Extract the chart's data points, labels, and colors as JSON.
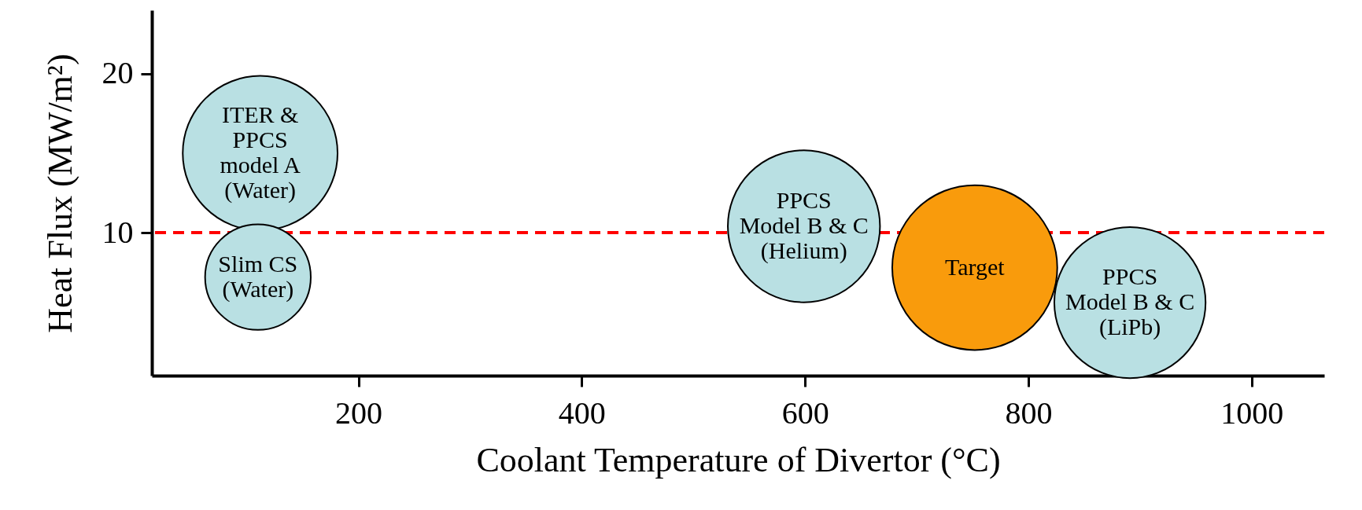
{
  "chart_data": {
    "type": "bubble",
    "xlabel": "Coolant Temperature of Divertor (°C)",
    "ylabel": "Heat Flux (MW/m²)",
    "x": [
      112,
      110,
      599,
      891,
      752
    ],
    "values": [
      15.0,
      7.2,
      10.4,
      5.6,
      7.8
    ],
    "sizes": [
      0.88,
      0.41,
      0.85,
      0.84,
      1
    ],
    "colors": [
      "#b9e0e3",
      "#b9e0e3",
      "#b9e0e3",
      "#b9e0e3",
      "#f99b0c"
    ],
    "xlim": [
      15,
      1065
    ],
    "ylim": [
      1,
      24
    ],
    "xticks": [
      200,
      400,
      600,
      800,
      {
        "value": 1000,
        "label": "1000"
      }
    ],
    "yticks": [
      10,
      20
    ],
    "annotations": [
      {
        "text": "ITER &\nPPCS\nmodel A\n(Water)",
        "x": 112,
        "y": 15.0
      },
      {
        "text": "Slim CS\n(Water)",
        "x": 110,
        "y": 7.2
      },
      "PPCS\nModel B & C\n(Helium)",
      "PPCS\nModel B & C\n(LiPb)",
      {
        "text": "Target",
        "x": 752,
        "y": 7.8
      }
    ],
    "ref_lines": [
      {
        "axis": "y",
        "value": 10,
        "color": "#ff0000",
        "line_style": "dashed"
      }
    ],
    "grid": false,
    "legend": false
  }
}
